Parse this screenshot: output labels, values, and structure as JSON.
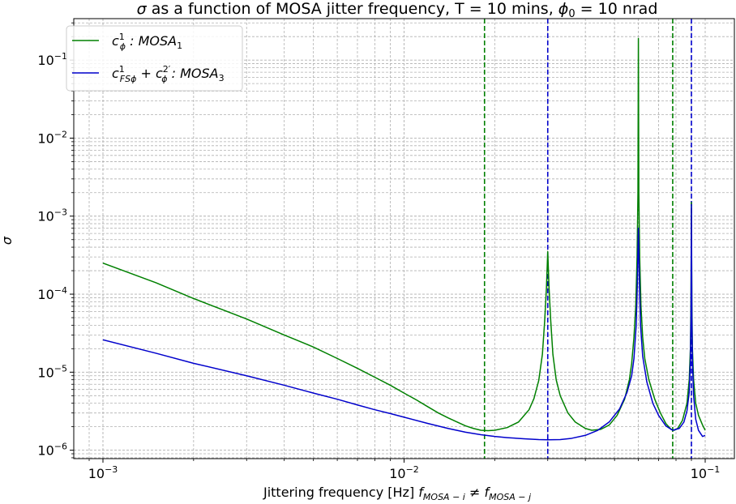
{
  "chart_data": {
    "type": "line",
    "title": {
      "part1": "σ",
      "part2": " as a function of MOSA jitter frequency, T = 10 mins, ",
      "part3": "ϕ",
      "part3_sub": "0",
      "part4": " = 10 nrad"
    },
    "xlabel": {
      "part1": "Jittering frequency [Hz] ",
      "f1": "f",
      "f1_sub": "MOSA − i",
      "neq": " ≠ ",
      "f2": "f",
      "f2_sub": "MOSA − j"
    },
    "ylabel": "σ",
    "xscale": "log",
    "yscale": "log",
    "xlim": [
      0.0008,
      0.125
    ],
    "ylim": [
      7.8e-07,
      0.34
    ],
    "grid": true,
    "legend_position": "upper-left",
    "x_ticks": [
      {
        "value": 0.001,
        "base": "10",
        "exp": "−3"
      },
      {
        "value": 0.01,
        "base": "10",
        "exp": "−2"
      },
      {
        "value": 0.1,
        "base": "10",
        "exp": "−1"
      }
    ],
    "y_ticks": [
      {
        "value": 1e-06,
        "base": "10",
        "exp": "−6"
      },
      {
        "value": 1e-05,
        "base": "10",
        "exp": "−5"
      },
      {
        "value": 0.0001,
        "base": "10",
        "exp": "−4"
      },
      {
        "value": 0.001,
        "base": "10",
        "exp": "−3"
      },
      {
        "value": 0.01,
        "base": "10",
        "exp": "−2"
      },
      {
        "value": 0.1,
        "base": "10",
        "exp": "−1"
      }
    ],
    "series": [
      {
        "legend_main": "c",
        "legend_sup": "1",
        "legend_sub": "ϕ",
        "legend_rest": " : MOSA",
        "legend_rest_sub": "1",
        "color": "#008000",
        "points": [
          [
            0.001,
            0.00025
          ],
          [
            0.0015,
            0.00014
          ],
          [
            0.002,
            8.8e-05
          ],
          [
            0.003,
            4.8e-05
          ],
          [
            0.004,
            3e-05
          ],
          [
            0.005,
            2.1e-05
          ],
          [
            0.006,
            1.5e-05
          ],
          [
            0.007,
            1.12e-05
          ],
          [
            0.008,
            8.6e-06
          ],
          [
            0.009,
            6.8e-06
          ],
          [
            0.01,
            5.4e-06
          ],
          [
            0.011,
            4.4e-06
          ],
          [
            0.012,
            3.6e-06
          ],
          [
            0.013,
            3e-06
          ],
          [
            0.014,
            2.6e-06
          ],
          [
            0.015,
            2.3e-06
          ],
          [
            0.016,
            2.05e-06
          ],
          [
            0.017,
            1.9e-06
          ],
          [
            0.018,
            1.8e-06
          ],
          [
            0.019,
            1.78e-06
          ],
          [
            0.02,
            1.8e-06
          ],
          [
            0.022,
            1.95e-06
          ],
          [
            0.024,
            2.3e-06
          ],
          [
            0.026,
            3.3e-06
          ],
          [
            0.027,
            4.6e-06
          ],
          [
            0.028,
            7.8e-06
          ],
          [
            0.0288,
            1.7e-05
          ],
          [
            0.0293,
            4.5e-05
          ],
          [
            0.0297,
            0.00012
          ],
          [
            0.03,
            0.00035
          ],
          [
            0.0303,
            0.00012
          ],
          [
            0.0307,
            4.5e-05
          ],
          [
            0.0312,
            1.7e-05
          ],
          [
            0.032,
            8e-06
          ],
          [
            0.033,
            5e-06
          ],
          [
            0.035,
            3e-06
          ],
          [
            0.037,
            2.3e-06
          ],
          [
            0.04,
            1.9e-06
          ],
          [
            0.042,
            1.8e-06
          ],
          [
            0.045,
            1.85e-06
          ],
          [
            0.048,
            2.1e-06
          ],
          [
            0.051,
            2.8e-06
          ],
          [
            0.054,
            4.5e-06
          ],
          [
            0.056,
            8e-06
          ],
          [
            0.057,
            1.3e-05
          ],
          [
            0.058,
            2.8e-05
          ],
          [
            0.0588,
            7e-05
          ],
          [
            0.0594,
            0.0003
          ],
          [
            0.0598,
            0.002
          ],
          [
            0.06,
            0.19
          ],
          [
            0.0602,
            0.002
          ],
          [
            0.0606,
            0.0003
          ],
          [
            0.0612,
            7e-05
          ],
          [
            0.062,
            2.8e-05
          ],
          [
            0.063,
            1.5e-05
          ],
          [
            0.065,
            8e-06
          ],
          [
            0.068,
            4.5e-06
          ],
          [
            0.071,
            3e-06
          ],
          [
            0.074,
            2.2e-06
          ],
          [
            0.077,
            1.85e-06
          ],
          [
            0.079,
            1.8e-06
          ],
          [
            0.081,
            1.9e-06
          ],
          [
            0.084,
            2.4e-06
          ],
          [
            0.087,
            4e-06
          ],
          [
            0.0885,
            8e-06
          ],
          [
            0.0893,
            2e-05
          ],
          [
            0.0897,
            8e-05
          ],
          [
            0.09,
            0.0015
          ],
          [
            0.0903,
            8e-05
          ],
          [
            0.0907,
            2e-05
          ],
          [
            0.0915,
            8e-06
          ],
          [
            0.093,
            4e-06
          ],
          [
            0.095,
            2.8e-06
          ],
          [
            0.098,
            2.1e-06
          ],
          [
            0.1,
            1.8e-06
          ]
        ]
      },
      {
        "legend_main": "c",
        "legend_sup": "1",
        "legend_sub": "FSϕ",
        "legend_plus": " + ",
        "legend_main2": "c",
        "legend_sup2": "2′",
        "legend_sub2": "ϕ",
        "legend_rest": " : MOSA",
        "legend_rest_sub": "3",
        "color": "#0000cc",
        "points": [
          [
            0.001,
            2.6e-05
          ],
          [
            0.0015,
            1.75e-05
          ],
          [
            0.002,
            1.3e-05
          ],
          [
            0.003,
            9e-06
          ],
          [
            0.004,
            6.8e-06
          ],
          [
            0.005,
            5.4e-06
          ],
          [
            0.006,
            4.5e-06
          ],
          [
            0.007,
            3.8e-06
          ],
          [
            0.008,
            3.3e-06
          ],
          [
            0.009,
            2.95e-06
          ],
          [
            0.01,
            2.65e-06
          ],
          [
            0.012,
            2.2e-06
          ],
          [
            0.014,
            1.9e-06
          ],
          [
            0.016,
            1.7e-06
          ],
          [
            0.018,
            1.58e-06
          ],
          [
            0.02,
            1.5e-06
          ],
          [
            0.022,
            1.45e-06
          ],
          [
            0.025,
            1.4e-06
          ],
          [
            0.028,
            1.37e-06
          ],
          [
            0.03,
            1.36e-06
          ],
          [
            0.033,
            1.37e-06
          ],
          [
            0.036,
            1.42e-06
          ],
          [
            0.04,
            1.55e-06
          ],
          [
            0.044,
            1.8e-06
          ],
          [
            0.048,
            2.3e-06
          ],
          [
            0.052,
            3.4e-06
          ],
          [
            0.055,
            5.5e-06
          ],
          [
            0.057,
            9e-06
          ],
          [
            0.058,
            1.5e-05
          ],
          [
            0.059,
            4e-05
          ],
          [
            0.0595,
            0.00013
          ],
          [
            0.06,
            0.0007
          ],
          [
            0.0605,
            0.00013
          ],
          [
            0.061,
            4e-05
          ],
          [
            0.062,
            1.6e-05
          ],
          [
            0.064,
            7.5e-06
          ],
          [
            0.067,
            4e-06
          ],
          [
            0.07,
            2.8e-06
          ],
          [
            0.074,
            2.05e-06
          ],
          [
            0.078,
            1.8e-06
          ],
          [
            0.082,
            1.9e-06
          ],
          [
            0.085,
            2.3e-06
          ],
          [
            0.087,
            3.2e-06
          ],
          [
            0.0885,
            5.5e-06
          ],
          [
            0.0893,
            1.4e-05
          ],
          [
            0.0897,
            5e-05
          ],
          [
            0.09,
            0.0014
          ],
          [
            0.0903,
            5e-05
          ],
          [
            0.0907,
            1.4e-05
          ],
          [
            0.0915,
            5e-06
          ],
          [
            0.093,
            2.5e-06
          ],
          [
            0.095,
            1.8e-06
          ],
          [
            0.098,
            1.5e-06
          ],
          [
            0.1,
            1.55e-06
          ]
        ]
      }
    ],
    "vlines": [
      {
        "x": 0.0185,
        "color": "#008000"
      },
      {
        "x": 0.03,
        "color": "#0000cc"
      },
      {
        "x": 0.078,
        "color": "#008000"
      },
      {
        "x": 0.09,
        "color": "#0000cc"
      }
    ]
  }
}
